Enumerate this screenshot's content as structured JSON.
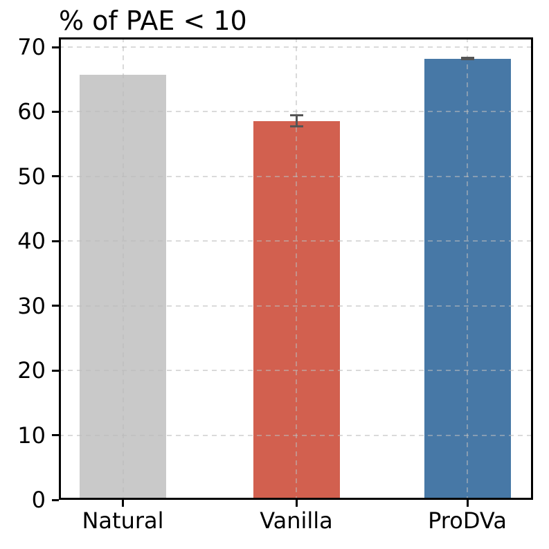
{
  "chart_data": {
    "type": "bar",
    "title": "% of PAE < 10",
    "title_loc": "left",
    "categories": [
      "Natural",
      "Vanilla",
      "ProDVa"
    ],
    "values": [
      65.7,
      58.6,
      68.2
    ],
    "errors": [
      0,
      0.9,
      0.15
    ],
    "bar_colors": [
      "#c9c9c9",
      "#d2604f",
      "#4778a6"
    ],
    "error_color": "#555555",
    "xlabel": "",
    "ylabel": "",
    "yticks": [
      0,
      10,
      20,
      30,
      40,
      50,
      60,
      70
    ],
    "ylim": [
      0,
      71.5
    ],
    "grid": {
      "visible": true,
      "style": "dashed",
      "axes": "both",
      "color": "#bbbbbb",
      "alpha": 0.55
    },
    "legend": "none",
    "background": "#ffffff",
    "text_color": "#000000"
  }
}
